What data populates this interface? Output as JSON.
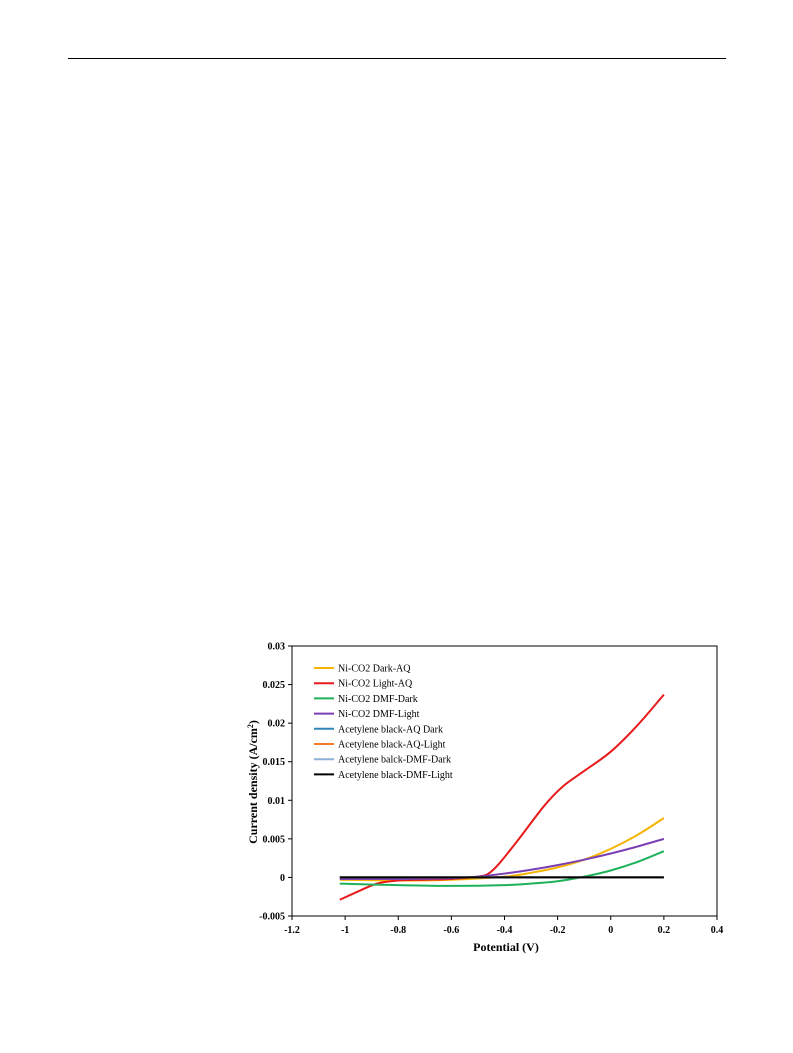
{
  "chart_data": {
    "type": "line",
    "title": "",
    "xlabel": "Potential (V)",
    "ylabel_main": "Current density (A/cm",
    "ylabel_sup": "2",
    "ylabel_tail": ")",
    "xlim": [
      -1.2,
      0.4
    ],
    "ylim": [
      -0.005,
      0.03
    ],
    "xticks": [
      -1.2,
      -1,
      -0.8,
      -0.6,
      -0.4,
      -0.2,
      0,
      0.2,
      0.4
    ],
    "xtick_labels": [
      "-1.2",
      "-1",
      "-0.8",
      "-0.6",
      "-0.4",
      "-0.2",
      "0",
      "0.2",
      "0.4"
    ],
    "yticks": [
      -0.005,
      0,
      0.005,
      0.01,
      0.015,
      0.02,
      0.025,
      0.03
    ],
    "ytick_labels": [
      "-0.005",
      "0",
      "0.005",
      "0.01",
      "0.015",
      "0.02",
      "0.025",
      "0.03"
    ],
    "grid": false,
    "legend_position": "top-left",
    "series": [
      {
        "name": "Ni-CO2 Dark-AQ",
        "color": "#f6b400",
        "x": [
          -1.02,
          -0.8,
          -0.6,
          -0.4,
          -0.3,
          -0.2,
          -0.1,
          0,
          0.1,
          0.2
        ],
        "y": [
          -0.0003,
          -0.0004,
          -0.0003,
          0.0001,
          0.0006,
          0.0013,
          0.0023,
          0.0037,
          0.0055,
          0.0077
        ]
      },
      {
        "name": "Ni-CO2 Light-AQ",
        "color": "#e81a1a",
        "x": [
          -1.02,
          -0.95,
          -0.88,
          -0.8,
          -0.7,
          -0.6,
          -0.5,
          -0.46,
          -0.42,
          -0.35,
          -0.25,
          -0.18,
          -0.1,
          0,
          0.1,
          0.2
        ],
        "y": [
          -0.0029,
          -0.0018,
          -0.0008,
          -0.0004,
          -0.0003,
          -0.0002,
          0.0001,
          0.0005,
          0.0018,
          0.0048,
          0.0093,
          0.0118,
          0.0138,
          0.0163,
          0.0197,
          0.0237
        ]
      },
      {
        "name": "Ni-CO2 DMF-Dark",
        "color": "#1fb25a",
        "x": [
          -1.02,
          -0.8,
          -0.6,
          -0.4,
          -0.3,
          -0.2,
          -0.1,
          0,
          0.1,
          0.2
        ],
        "y": [
          -0.0008,
          -0.001,
          -0.0011,
          -0.001,
          -0.0008,
          -0.0005,
          0.0001,
          0.0009,
          0.002,
          0.0034
        ]
      },
      {
        "name": "Ni-CO2 DMF-Light",
        "color": "#7a3fb3",
        "x": [
          -1.02,
          -0.8,
          -0.6,
          -0.5,
          -0.4,
          -0.3,
          -0.2,
          -0.1,
          0,
          0.1,
          0.2
        ],
        "y": [
          -0.0002,
          -0.0002,
          -0.0001,
          0.0001,
          0.0005,
          0.001,
          0.0016,
          0.0023,
          0.0031,
          0.004,
          0.005
        ]
      },
      {
        "name": "Acetylene black-AQ Dark",
        "color": "#2f86b9",
        "x": [
          -1.02,
          0.2
        ],
        "y": [
          0.0,
          0.0
        ]
      },
      {
        "name": "Acetylene black-AQ-Light",
        "color": "#f07a2a",
        "x": [
          -1.02,
          0.2
        ],
        "y": [
          0.0,
          0.0
        ]
      },
      {
        "name": "Acetylene balck-DMF-Dark",
        "color": "#8fb0d6",
        "x": [
          -1.02,
          0.2
        ],
        "y": [
          0.0,
          0.0
        ]
      },
      {
        "name": "Acetylene black-DMF-Light",
        "color": "#000000",
        "x": [
          -1.02,
          0.2
        ],
        "y": [
          0.0,
          0.0
        ]
      }
    ]
  }
}
